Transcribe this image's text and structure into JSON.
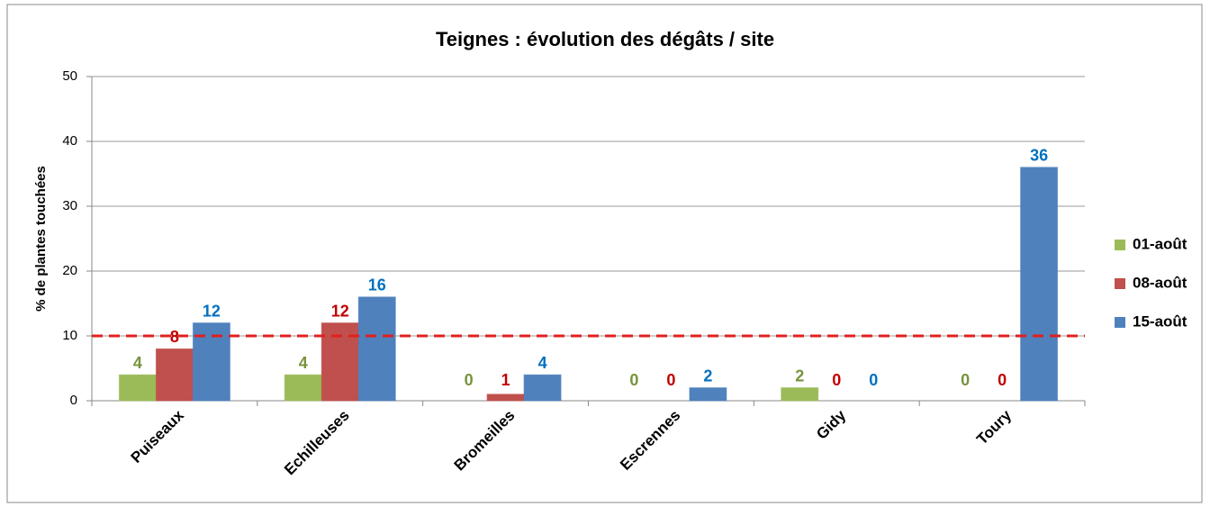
{
  "chart_data": {
    "type": "bar",
    "title": "Teignes : évolution des dégâts / site",
    "y_label": "% de plantes touchées",
    "categories": [
      "Puiseaux",
      "Echilleuses",
      "Bromeilles",
      "Escrennes",
      "Gidy",
      "Toury"
    ],
    "series": [
      {
        "name": "01-août",
        "color": "#9bbb59",
        "label_color": "#77933c",
        "values": [
          4,
          4,
          0,
          0,
          2,
          0
        ]
      },
      {
        "name": "08-août",
        "color": "#c0504d",
        "label_color": "#c00000",
        "values": [
          8,
          12,
          1,
          0,
          0,
          0
        ]
      },
      {
        "name": "15-août",
        "color": "#4f81bd",
        "label_color": "#0070c0",
        "values": [
          12,
          16,
          4,
          2,
          0,
          36
        ]
      }
    ],
    "reference_line": {
      "value": 10,
      "color": "#e02020"
    },
    "ylim": [
      0,
      50
    ],
    "yticks": [
      0,
      10,
      20,
      30,
      40,
      50
    ],
    "grid": true,
    "legend": "right"
  }
}
